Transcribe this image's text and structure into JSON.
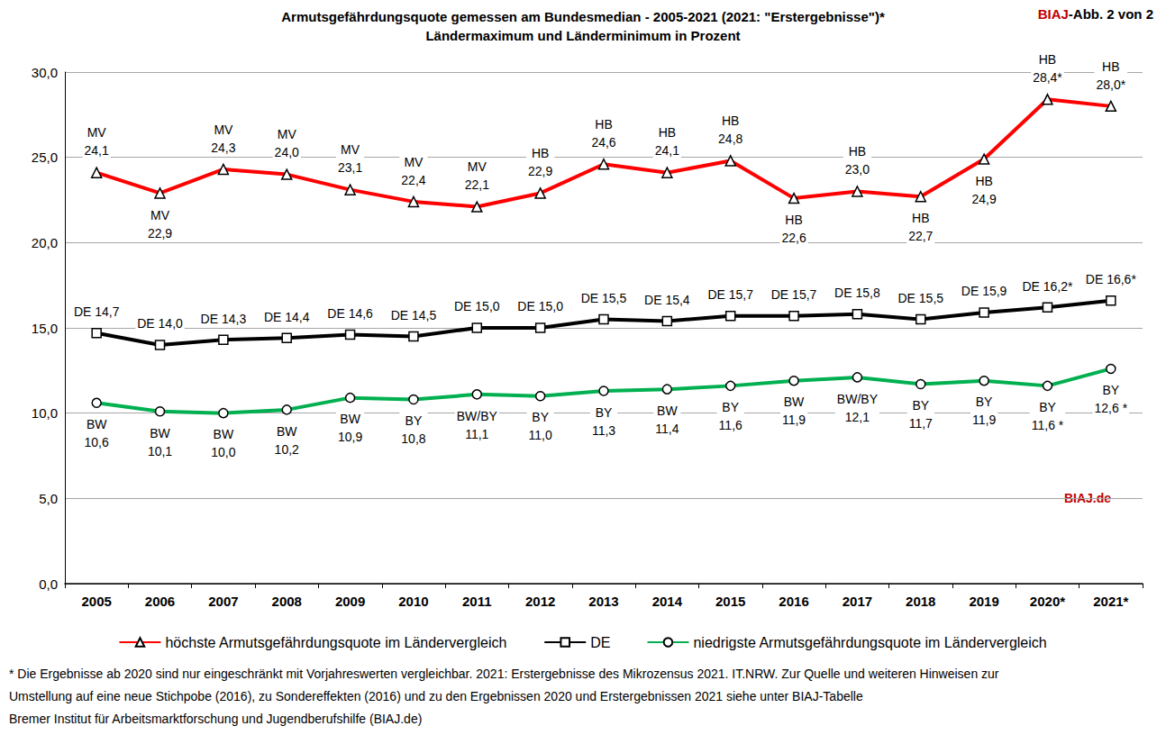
{
  "chart_data": {
    "type": "line",
    "title": "Armutsgefährdungsquote gemessen am Bundesmedian - 2005-2021 (2021: \"Erstergebnisse\")*",
    "subtitle": "Ländermaximum und Länderminimum in Prozent",
    "annotations": [
      "BIAJ-Abb. 2 von 2",
      "BIAJ.de"
    ],
    "footnotes": [
      "* Die Ergebnisse ab 2020 sind nur eingeschränkt mit Vorjahreswerten vergleichbar. 2021: Erstergebnisse des Mikrozensus 2021. IT.NRW.  Zur Quelle und weiteren Hinweisen zur",
      "Umstellung auf eine neue Stichpobe (2016), zu Sondereffekten (2016) und zu den Ergebnissen 2020 und Erstergebnissen 2021 siehe unter BIAJ-Tabelle",
      "Bremer Institut für Arbeitsmarktforschung und Jugendberufshilfe (BIAJ.de)"
    ],
    "categories": [
      "2005",
      "2006",
      "2007",
      "2008",
      "2009",
      "2010",
      "2011",
      "2012",
      "2013",
      "2014",
      "2015",
      "2016",
      "2017",
      "2018",
      "2019",
      "2020*",
      "2021*"
    ],
    "series": [
      {
        "name": "höchste Armutsgefährdungsquote im Ländervergleich",
        "color": "#ff0000",
        "marker": "triangle",
        "values": [
          24.1,
          22.9,
          24.3,
          24.0,
          23.1,
          22.4,
          22.1,
          22.9,
          24.6,
          24.1,
          24.8,
          22.6,
          23.0,
          22.7,
          24.9,
          28.4,
          28.0
        ],
        "value_labels": [
          "MV\n24,1",
          "MV\n22,9",
          "MV\n24,3",
          "MV\n24,0",
          "MV\n23,1",
          "MV\n22,4",
          "MV\n22,1",
          "HB\n22,9",
          "HB\n24,6",
          "HB\n24,1",
          "HB\n24,8",
          "HB\n22,6",
          "HB\n23,0",
          "HB\n22,7",
          "HB\n24,9",
          "HB\n28,4*",
          "HB\n28,0*"
        ]
      },
      {
        "name": "DE",
        "color": "#000000",
        "marker": "rect",
        "values": [
          14.7,
          14.0,
          14.3,
          14.4,
          14.6,
          14.5,
          15.0,
          15.0,
          15.5,
          15.4,
          15.7,
          15.7,
          15.8,
          15.5,
          15.9,
          16.2,
          16.6
        ],
        "value_labels": [
          "DE 14,7",
          "DE 14,0",
          "DE 14,3",
          "DE 14,4",
          "DE 14,6",
          "DE 14,5",
          "DE 15,0",
          "DE 15,0",
          "DE 15,5",
          "DE 15,4",
          "DE 15,7",
          "DE 15,7",
          "DE 15,8",
          "DE 15,5",
          "DE 15,9",
          "DE 16,2*",
          "DE 16,6*"
        ]
      },
      {
        "name": "niedrigste Armutsgefährdungsquote im Ländervergleich",
        "color": "#00b050",
        "marker": "circle",
        "values": [
          10.6,
          10.1,
          10.0,
          10.2,
          10.9,
          10.8,
          11.1,
          11.0,
          11.3,
          11.4,
          11.6,
          11.9,
          12.1,
          11.7,
          11.9,
          11.6,
          12.6
        ],
        "value_labels": [
          "BW\n10,6",
          "BW\n10,1",
          "BW\n10,0",
          "BW\n10,2",
          "BW\n10,9",
          "BY\n10,8",
          "BW/BY\n11,1",
          "BY\n11,0",
          "BY\n11,3",
          "BW\n11,4",
          "BY\n11,6",
          "BW\n11,9",
          "BW/BY\n12,1",
          "BY\n11,7",
          "BY\n11,9",
          "BY\n11,6 *",
          "BY\n12,6 *"
        ]
      }
    ],
    "ylim": [
      0,
      30
    ],
    "yticks": [
      {
        "value": 0,
        "label": "0,0"
      },
      {
        "value": 5,
        "label": "5,0"
      },
      {
        "value": 10,
        "label": "10,0"
      },
      {
        "value": 15,
        "label": "15,0"
      },
      {
        "value": 20,
        "label": "20,0"
      },
      {
        "value": 25,
        "label": "25,0"
      },
      {
        "value": 30,
        "label": "30,0"
      }
    ],
    "grid": true,
    "legend": "bottom",
    "data_labels": true
  }
}
